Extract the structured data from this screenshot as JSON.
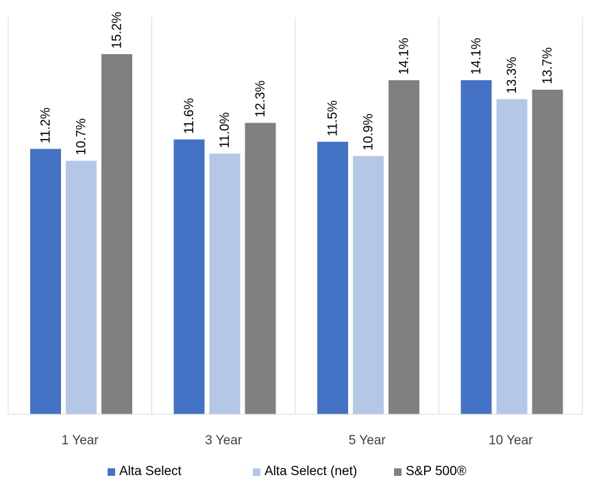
{
  "chart_data": {
    "type": "bar",
    "categories": [
      "1 Year",
      "3 Year",
      "5 Year",
      "10 Year"
    ],
    "series": [
      {
        "name": "Alta Select",
        "values": [
          11.2,
          11.6,
          11.5,
          14.1
        ],
        "labels": [
          "11.2%",
          "11.6%",
          "11.5%",
          "14.1%"
        ],
        "color": "#4472c4"
      },
      {
        "name": "Alta Select (net)",
        "values": [
          10.7,
          11.0,
          10.9,
          13.3
        ],
        "labels": [
          "10.7%",
          "11.0%",
          "10.9%",
          "13.3%"
        ],
        "color": "#b4c7e7"
      },
      {
        "name": "S&P 500®",
        "values": [
          15.2,
          12.3,
          14.1,
          13.7
        ],
        "labels": [
          "15.2%",
          "12.3%",
          "14.1%",
          "13.7%"
        ],
        "color": "#808080"
      }
    ],
    "ylim": [
      0,
      20
    ],
    "y_axis_visible": false,
    "grid": "vertical category separators",
    "legend_position": "bottom",
    "xlabel": "",
    "ylabel": ""
  }
}
